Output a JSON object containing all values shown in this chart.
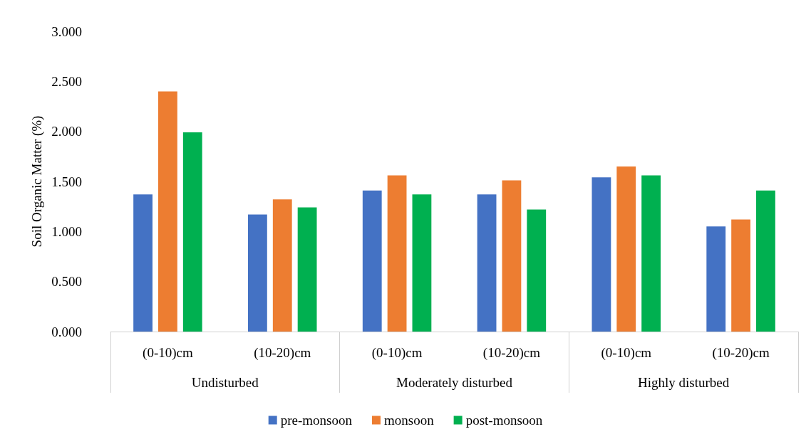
{
  "chart_data": {
    "type": "bar",
    "ylabel": "Soil Organic Matter (%)",
    "categories": [
      "(0-10)cm",
      "(10-20)cm",
      "(0-10)cm",
      "(10-20)cm",
      "(0-10)cm",
      "(10-20)cm"
    ],
    "annotations": [
      "Undisturbed",
      "Moderately disturbed",
      "Highly disturbed"
    ],
    "series": [
      {
        "name": "pre-monsoon",
        "color": "#4472c4",
        "values": [
          1.37,
          1.17,
          1.41,
          1.37,
          1.54,
          1.05
        ]
      },
      {
        "name": "monsoon",
        "color": "#ed7d31",
        "values": [
          2.4,
          1.32,
          1.56,
          1.51,
          1.65,
          1.12
        ]
      },
      {
        "name": "post-monsoon",
        "color": "#00b050",
        "values": [
          1.99,
          1.24,
          1.37,
          1.22,
          1.56,
          1.41
        ]
      }
    ],
    "ylim": [
      0,
      3
    ],
    "yticks": [
      {
        "value": 0,
        "label": "0.000"
      },
      {
        "value": 0.5,
        "label": "0.500"
      },
      {
        "value": 1,
        "label": "1.000"
      },
      {
        "value": 1.5,
        "label": "1.500"
      },
      {
        "value": 2,
        "label": "2.000"
      },
      {
        "value": 2.5,
        "label": "2.500"
      },
      {
        "value": 3,
        "label": "3.000"
      }
    ],
    "grid": false,
    "legend": "bottom"
  }
}
